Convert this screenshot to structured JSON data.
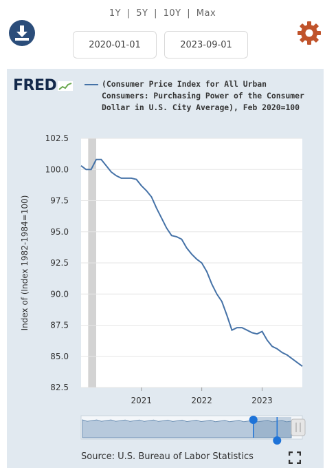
{
  "range_buttons": [
    "1Y",
    "5Y",
    "10Y",
    "Max"
  ],
  "range_separator": "|",
  "date_range": {
    "start": "2020-01-01",
    "end": "2023-09-01"
  },
  "icons": {
    "download": "download-icon",
    "settings": "gear-icon",
    "fullscreen": "fullscreen-icon"
  },
  "colors": {
    "accent_download": "#2b4d7a",
    "accent_settings": "#c0532b",
    "series": "#4572a7",
    "panel_bg": "#e1e9f0",
    "recession": "#d3d3d3"
  },
  "logo_text": "FRED",
  "source": "Source: U.S. Bureau of Labor Statistics",
  "chart_data": {
    "type": "line",
    "title": "",
    "legend": [
      "(Consumer Price Index for All Urban Consumers: Purchasing Power of the Consumer Dollar in U.S. City Average), Feb 2020=100"
    ],
    "ylabel": "Index of (Index 1982-1984=100)",
    "xlabel": "",
    "ylim": [
      82.5,
      102.5
    ],
    "yticks": [
      "102.5",
      "100.0",
      "97.5",
      "95.0",
      "92.5",
      "90.0",
      "87.5",
      "85.0",
      "82.5"
    ],
    "xticks": [
      "2021",
      "2022",
      "2023"
    ],
    "recession": [
      "2020-02",
      "2020-04"
    ],
    "series": [
      {
        "name": "(Consumer Price Index for All Urban Consumers: Purchasing Power of the Consumer Dollar in U.S. City Average), Feb 2020=100",
        "x": [
          "2020-01",
          "2020-02",
          "2020-03",
          "2020-04",
          "2020-05",
          "2020-06",
          "2020-07",
          "2020-08",
          "2020-09",
          "2020-10",
          "2020-11",
          "2020-12",
          "2021-01",
          "2021-02",
          "2021-03",
          "2021-04",
          "2021-05",
          "2021-06",
          "2021-07",
          "2021-08",
          "2021-09",
          "2021-10",
          "2021-11",
          "2021-12",
          "2022-01",
          "2022-02",
          "2022-03",
          "2022-04",
          "2022-05",
          "2022-06",
          "2022-07",
          "2022-08",
          "2022-09",
          "2022-10",
          "2022-11",
          "2022-12",
          "2023-01",
          "2023-02",
          "2023-03",
          "2023-04",
          "2023-05",
          "2023-06",
          "2023-07",
          "2023-08",
          "2023-09"
        ],
        "y": [
          100.3,
          100.0,
          100.0,
          100.8,
          100.8,
          100.3,
          99.8,
          99.5,
          99.3,
          99.3,
          99.3,
          99.2,
          98.7,
          98.3,
          97.8,
          96.9,
          96.1,
          95.3,
          94.7,
          94.6,
          94.4,
          93.7,
          93.2,
          92.8,
          92.5,
          91.8,
          90.8,
          90.0,
          89.4,
          88.3,
          87.1,
          87.3,
          87.3,
          87.1,
          86.9,
          86.8,
          87.0,
          86.3,
          85.8,
          85.6,
          85.3,
          85.1,
          84.8,
          84.5,
          84.2
        ]
      }
    ],
    "navigator": {
      "start_x": "2020-01",
      "end_x": "2023-09",
      "handle_positions": [
        "2023-01",
        "2023-06"
      ]
    }
  }
}
